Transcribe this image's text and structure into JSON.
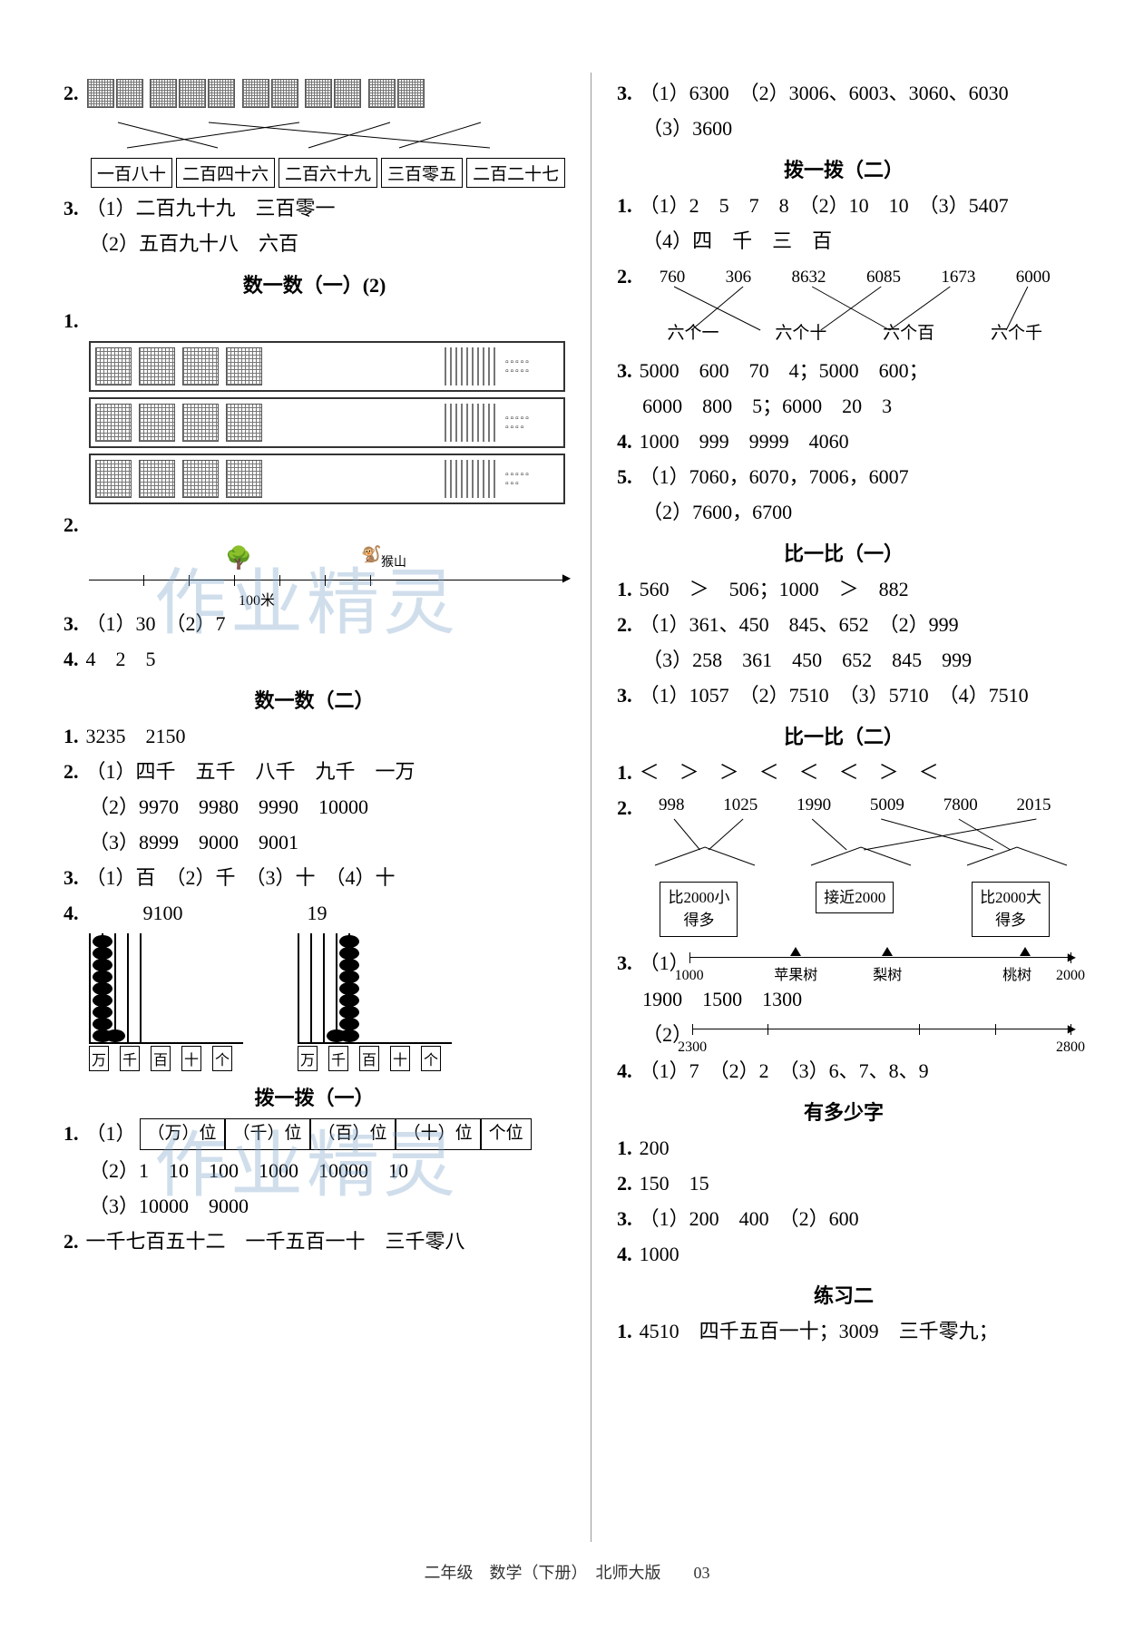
{
  "left": {
    "q2_boxes": [
      "一百八十",
      "二百四十六",
      "二百六十九",
      "三百零五",
      "二百二十七"
    ],
    "q3_1": "（1）二百九十九　三百零一",
    "q3_2": "（2）五百九十八　六百",
    "sec1_title": "数一数（一）(2)",
    "nl_label": "100米",
    "nl_monkey": "猴山",
    "q3b": "（1）30　（2）7",
    "q4b": "4　2　5",
    "sec2_title": "数一数（二）",
    "s2_q1": "3235　2150",
    "s2_q2_1": "（1）四千　五千　八千　九千　一万",
    "s2_q2_2": "（2）9970　9980　9990　10000",
    "s2_q2_3": "（3）8999　9000　9001",
    "s2_q3": "（1）百　（2）千　（3）十　（4）十",
    "s2_q4_a": "9100",
    "s2_q4_b": "19",
    "abacus_labels": [
      "万",
      "千",
      "百",
      "十",
      "个"
    ],
    "abacus1_beads": [
      0,
      9,
      1,
      0,
      0
    ],
    "abacus2_beads": [
      0,
      0,
      0,
      1,
      9
    ],
    "sec3_title": "拨一拨（一）",
    "s3_q1_boxes": [
      "（万）位",
      "（千）位",
      "（百）位",
      "（十）位",
      "个位"
    ],
    "s3_q1_2": "（2）1　10　100　1000　10000　10",
    "s3_q1_3": "（3）10000　9000",
    "s3_q2": "一千七百五十二　一千五百一十　三千零八"
  },
  "right": {
    "q3_top_1": "（1）6300　（2）3006、6003、3060、6030",
    "q3_top_2": "（3）3600",
    "sec1_title": "拨一拨（二）",
    "r1_q1_1": "（1）2　5　7　8　（2）10　10　（3）5407",
    "r1_q1_2": "（4）四　千　三　百",
    "r1_q2_top": [
      "760",
      "306",
      "8632",
      "6085",
      "1673",
      "6000"
    ],
    "r1_q2_bot": [
      "六个一",
      "六个十",
      "六个百",
      "六个千"
    ],
    "r1_q3_1": "5000　600　70　4；5000　600；",
    "r1_q3_2": "6000　800　5；6000　20　3",
    "r1_q4": "1000　999　9999　4060",
    "r1_q5_1": "（1）7060，6070，7006，6007",
    "r1_q5_2": "（2）7600，6700",
    "sec2_title": "比一比（一）",
    "r2_q1": "560　＞　506；1000　＞　882",
    "r2_q2_1": "（1）361、450　845、652　（2）999",
    "r2_q2_2": "（3）258　361　450　652　845　999",
    "r2_q3": "（1）1057　（2）7510　（3）5710　（4）7510",
    "sec3_title": "比一比（二）",
    "r3_q1": "＜　＞　＞　＜　＜　＜　＞　＜",
    "r3_q2_top": [
      "998",
      "1025",
      "1990",
      "5009",
      "7800",
      "2015"
    ],
    "r3_q2_houses": [
      "比2000小\n得多",
      "接近2000",
      "比2000大\n得多"
    ],
    "r3_q3_nl1_labels": {
      "start": "1000",
      "end": "2000",
      "mid1": "苹果树",
      "mid2": "梨树",
      "mid3": "桃树"
    },
    "r3_q3_vals": "1900　1500　1300",
    "r3_q3_nl2_labels": {
      "start": "2300",
      "end": "2800"
    },
    "r3_q4": "（1）7　（2）2　（3）6、7、8、9",
    "sec4_title": "有多少字",
    "r4_q1": "200",
    "r4_q2": "150　15",
    "r4_q3": "（1）200　400　（2）600",
    "r4_q4": "1000",
    "sec5_title": "练习二",
    "r5_q1": "4510　四千五百一十；3009　三千零九；"
  },
  "footer": "二年级　数学（下册）　北师大版　　03",
  "watermark": "作业精灵",
  "colors": {
    "text": "#000000",
    "wm": "rgba(120,160,200,0.35)"
  }
}
